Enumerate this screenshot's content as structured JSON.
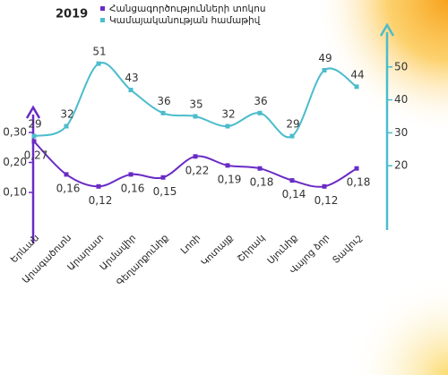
{
  "chart_data": {
    "type": "line",
    "title": "2019",
    "categories": [
      "Երևան",
      "Արագածոտն",
      "Արարատ",
      "Արմավիր",
      "Գեղարքունիք",
      "Լոռի",
      "Կոտայք",
      "Շիրակ",
      "Սյունիք",
      "Վայոց ձոր",
      "Տավուշ"
    ],
    "series": [
      {
        "name": "Հանցագործությունների տոկոս",
        "color": "#6a2bc4",
        "values": [
          0.27,
          0.16,
          0.12,
          0.16,
          0.15,
          0.22,
          0.19,
          0.18,
          0.14,
          0.12,
          0.18
        ],
        "value_labels": [
          "0,27",
          "0,16",
          "0,12",
          "0,16",
          "0,15",
          "0,22",
          "0,19",
          "0,18",
          "0,14",
          "0,12",
          "0,18"
        ]
      },
      {
        "name": "Կամայականության համաթիվ",
        "color": "#4bbccc",
        "axis": "y2",
        "values": [
          29,
          32,
          51,
          43,
          36,
          35,
          32,
          36,
          29,
          49,
          44
        ]
      }
    ],
    "ylim": [
      0,
      0.35
    ],
    "yticks": [
      {
        "value": 0.1,
        "label": "0,10"
      },
      {
        "value": 0.2,
        "label": "0,20"
      },
      {
        "value": 0.3,
        "label": "0,30"
      }
    ],
    "y2lim": [
      10,
      60
    ],
    "y2ticks": [
      20,
      30,
      40,
      50
    ]
  }
}
